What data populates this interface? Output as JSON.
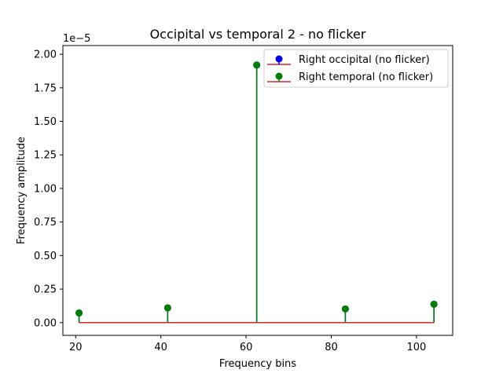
{
  "chart_data": {
    "type": "stem",
    "title": "Occipital vs temporal 2 - no flicker",
    "xlabel": "Frequency bins",
    "ylabel": "Frequency amplitude",
    "y_offset_label": "1e−5",
    "xlim": [
      17,
      108.5
    ],
    "ylim": [
      -9.5e-07,
      2.065e-05
    ],
    "x_ticks": [
      20,
      40,
      60,
      80,
      100
    ],
    "x_tick_labels": [
      "20",
      "40",
      "60",
      "80",
      "100"
    ],
    "y_ticks": [
      0,
      2.5e-06,
      5e-06,
      7.5e-06,
      1e-05,
      1.25e-05,
      1.5e-05,
      1.75e-05,
      2e-05
    ],
    "y_tick_labels": [
      "0.00",
      "0.25",
      "0.50",
      "0.75",
      "1.00",
      "1.25",
      "1.50",
      "1.75",
      "2.00"
    ],
    "baseline": 0,
    "baseline_color": "#d62728",
    "series": [
      {
        "name": "Right occipital (no flicker)",
        "color": "#0000ff",
        "x": [
          20.8,
          41.6,
          62.5,
          83.3,
          104.1
        ],
        "values": [
          7.2e-07,
          1.1e-06,
          1.92e-05,
          1.02e-06,
          1.37e-06
        ]
      },
      {
        "name": "Right temporal (no flicker)",
        "color": "#008000",
        "x": [
          20.8,
          41.6,
          62.5,
          83.3,
          104.1
        ],
        "values": [
          7.2e-07,
          1.1e-06,
          1.92e-05,
          1.02e-06,
          1.37e-06
        ]
      }
    ],
    "legend_position": "top-right",
    "grid": false
  }
}
